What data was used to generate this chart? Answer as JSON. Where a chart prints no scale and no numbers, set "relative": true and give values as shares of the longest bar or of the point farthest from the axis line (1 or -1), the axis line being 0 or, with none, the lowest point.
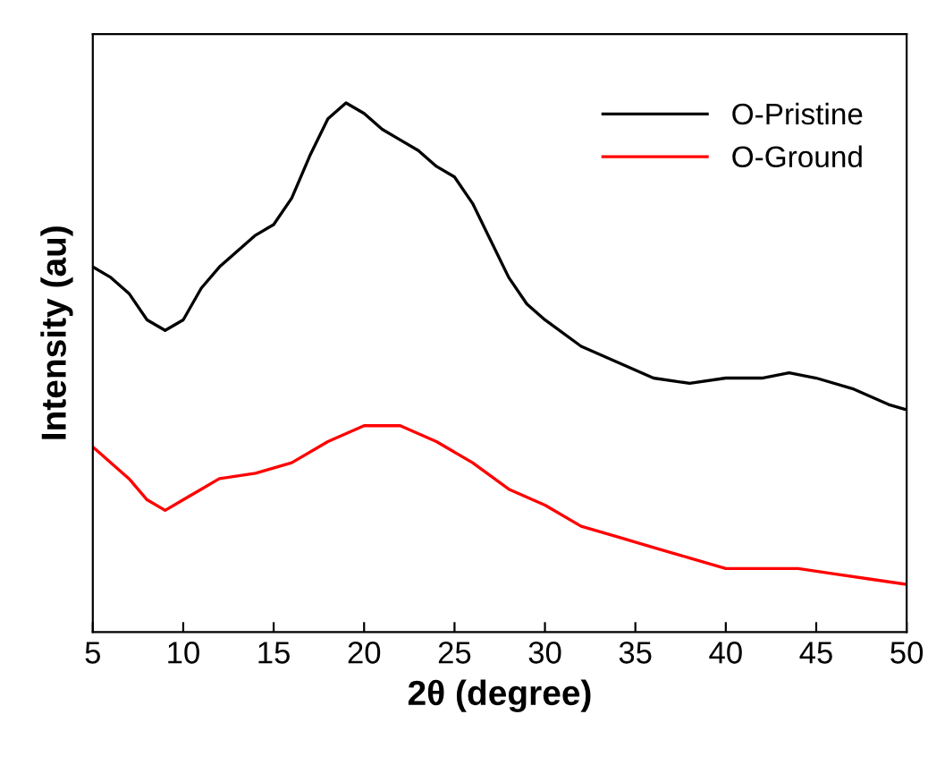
{
  "chart_data": {
    "type": "line",
    "xlabel": "2θ (degree)",
    "ylabel": "Intensity (au)",
    "relative": true,
    "xlim": [
      5,
      50
    ],
    "xticks": [
      5,
      10,
      15,
      20,
      25,
      30,
      35,
      40,
      45,
      50
    ],
    "legend": "top right",
    "grid": false,
    "series": [
      {
        "name": "O-Pristine",
        "color": "#000000",
        "x": [
          5,
          6,
          7,
          8,
          9,
          10,
          11,
          12,
          13,
          14,
          15,
          16,
          17,
          18,
          19,
          20,
          21,
          22,
          23,
          24,
          25,
          26,
          27,
          28,
          29,
          30,
          32,
          34,
          36,
          38,
          40,
          42,
          43.5,
          45,
          47,
          49,
          50
        ],
        "values": [
          0.69,
          0.67,
          0.64,
          0.59,
          0.57,
          0.59,
          0.65,
          0.69,
          0.72,
          0.75,
          0.77,
          0.82,
          0.9,
          0.97,
          1.0,
          0.98,
          0.95,
          0.93,
          0.91,
          0.88,
          0.86,
          0.81,
          0.74,
          0.67,
          0.62,
          0.59,
          0.54,
          0.51,
          0.48,
          0.47,
          0.48,
          0.48,
          0.49,
          0.48,
          0.46,
          0.43,
          0.42
        ]
      },
      {
        "name": "O-Ground",
        "color": "#ff0000",
        "x": [
          5,
          6,
          7,
          8,
          9,
          10,
          11,
          12,
          14,
          16,
          18,
          20,
          22,
          24,
          26,
          28,
          30,
          32,
          34,
          36,
          38,
          40,
          42,
          44,
          46,
          48,
          50
        ],
        "values": [
          0.35,
          0.32,
          0.29,
          0.25,
          0.23,
          0.25,
          0.27,
          0.29,
          0.3,
          0.32,
          0.36,
          0.39,
          0.39,
          0.36,
          0.32,
          0.27,
          0.24,
          0.2,
          0.18,
          0.16,
          0.14,
          0.12,
          0.12,
          0.12,
          0.11,
          0.1,
          0.09
        ]
      }
    ]
  }
}
